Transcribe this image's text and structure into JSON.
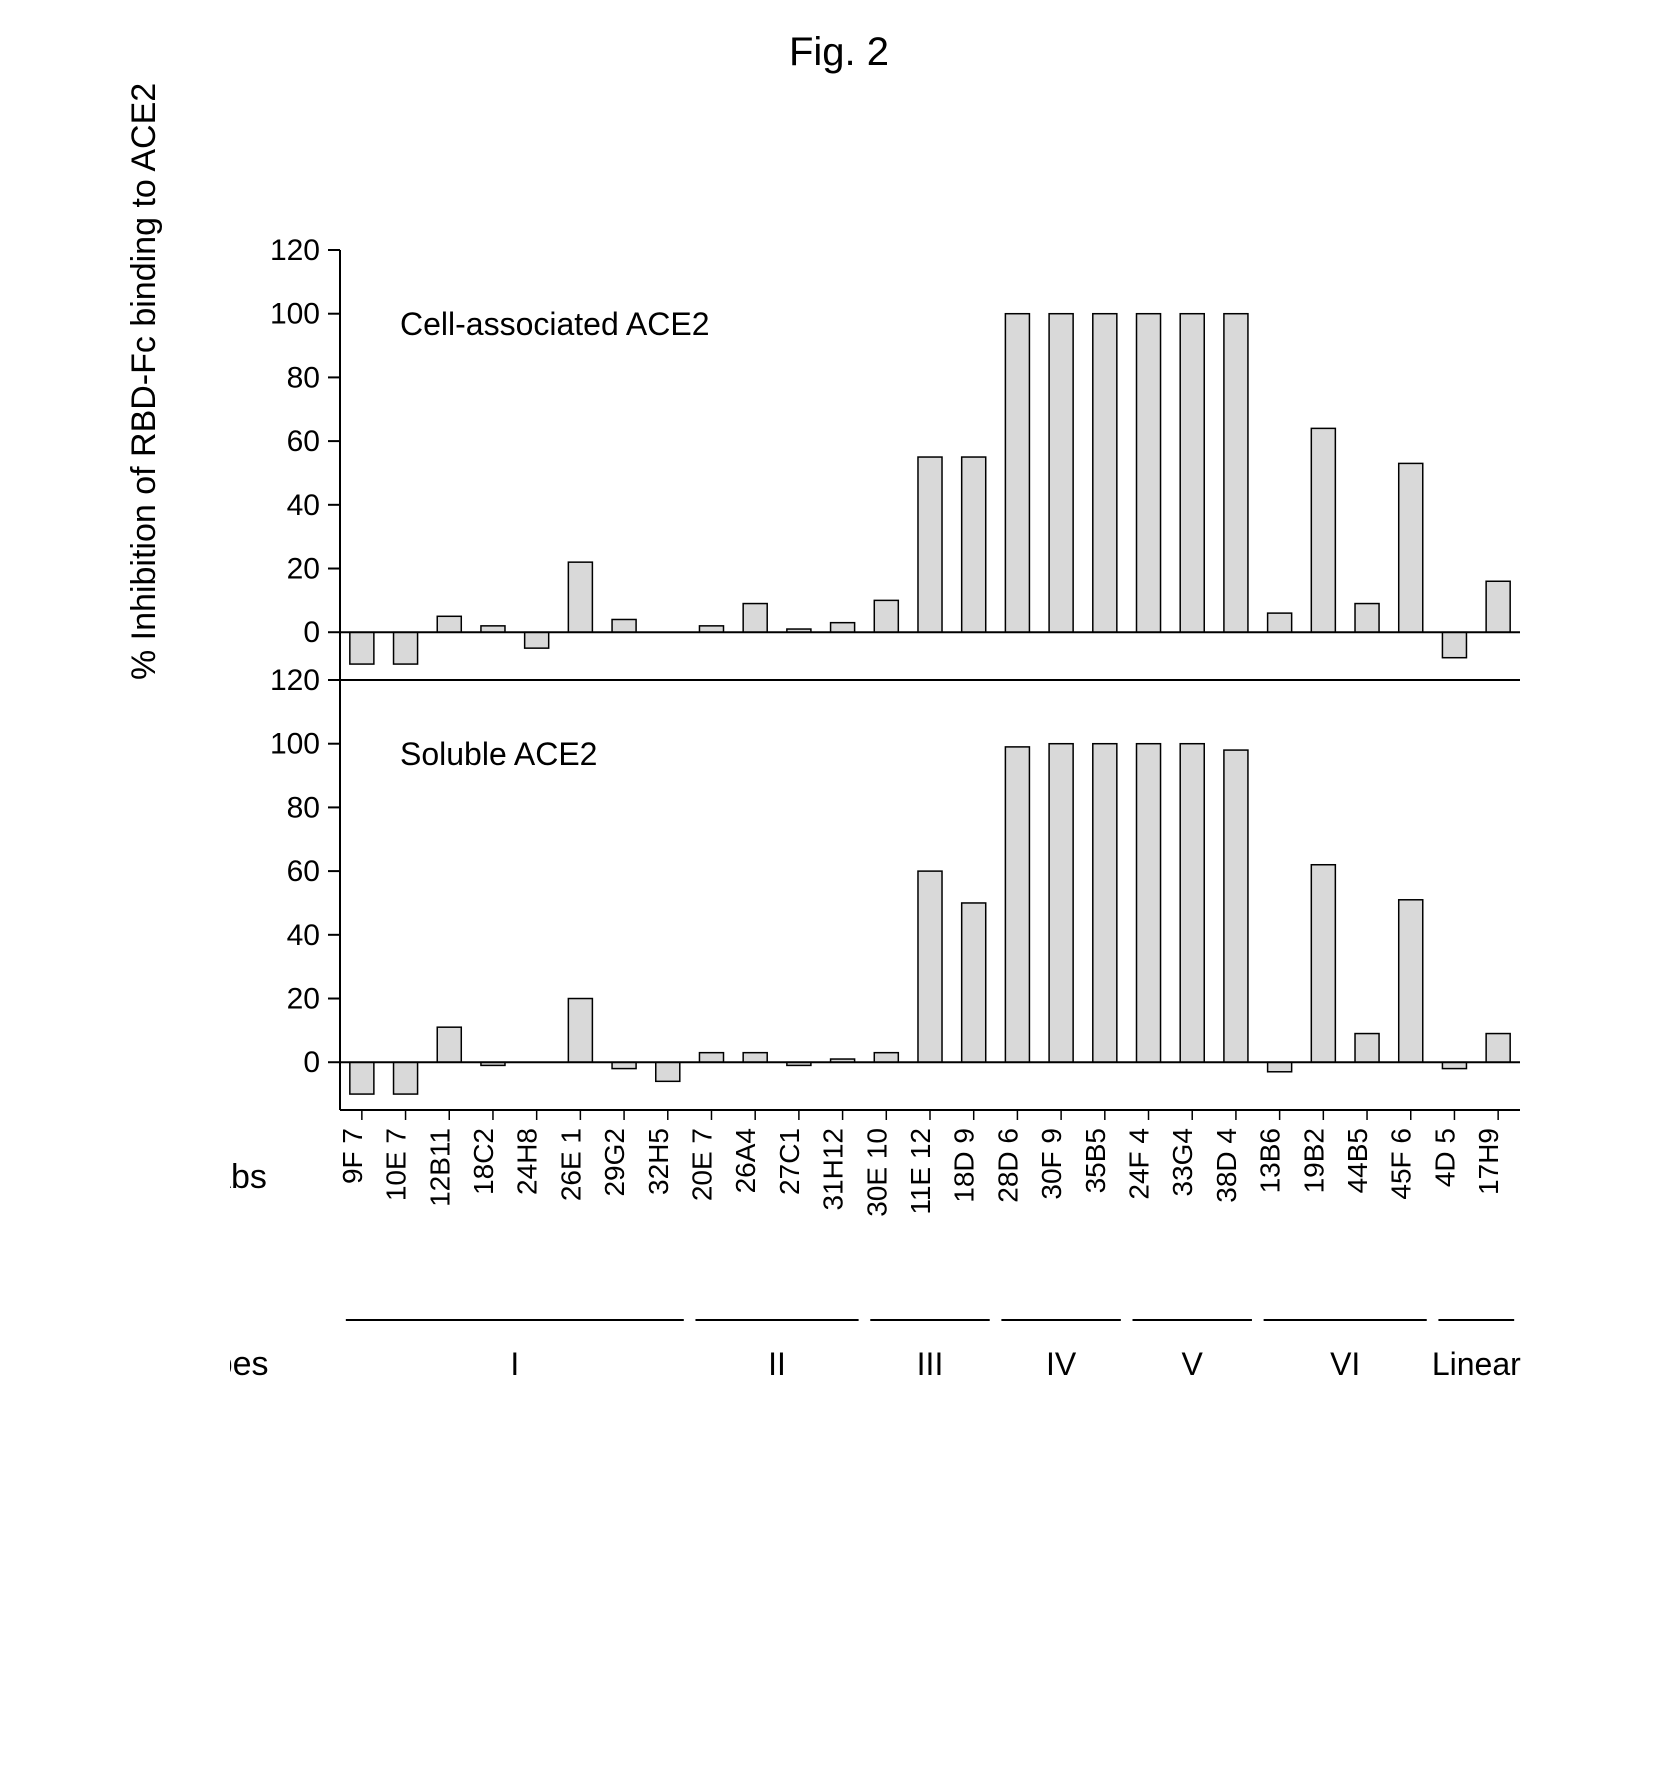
{
  "figure_title": "Fig. 2",
  "y_axis_label": "% Inhibition of RBD-Fc binding to ACE2",
  "x_axis_left_label": "mAbs",
  "epitope_row_label": "epitopes",
  "chart": {
    "type": "bar",
    "background_color": "#ffffff",
    "axis_color": "#000000",
    "bar_fill": "#d9d9d9",
    "bar_stroke": "#000000",
    "bar_width_ratio": 0.55,
    "panels": [
      {
        "label": "Cell-associated ACE2"
      },
      {
        "label": "Soluble ACE2"
      }
    ],
    "y": {
      "min": -15,
      "max": 120,
      "ticks": [
        0,
        20,
        40,
        60,
        80,
        100,
        120
      ],
      "tick_fontsize": 30
    },
    "categories": [
      "9F 7",
      "10E 7",
      "12B11",
      "18C2",
      "24H8",
      "26E 1",
      "29G2",
      "32H5",
      "20E 7",
      "26A4",
      "27C1",
      "31H12",
      "30E 10",
      "11E 12",
      "18D 9",
      "28D 6",
      "30F 9",
      "35B5",
      "24F 4",
      "33G4",
      "38D 4",
      "13B6",
      "19B2",
      "44B5",
      "45F 6",
      "4D 5",
      "17H9"
    ],
    "series": {
      "cell_associated": [
        -10,
        -10,
        5,
        2,
        -5,
        22,
        4,
        0,
        2,
        9,
        1,
        3,
        10,
        55,
        55,
        100,
        100,
        100,
        100,
        100,
        100,
        6,
        64,
        9,
        53,
        -8,
        16
      ],
      "soluble": [
        -10,
        -10,
        11,
        -1,
        0,
        20,
        -2,
        -6,
        3,
        3,
        -1,
        1,
        3,
        60,
        50,
        99,
        100,
        100,
        100,
        100,
        98,
        -3,
        62,
        9,
        51,
        -2,
        9
      ]
    },
    "epitope_groups": [
      {
        "label": "I",
        "from": 0,
        "to": 7
      },
      {
        "label": "II",
        "from": 8,
        "to": 11
      },
      {
        "label": "III",
        "from": 12,
        "to": 14
      },
      {
        "label": "IV",
        "from": 15,
        "to": 17
      },
      {
        "label": "V",
        "from": 18,
        "to": 20
      },
      {
        "label": "VI",
        "from": 21,
        "to": 24
      },
      {
        "label": "Linear",
        "from": 25,
        "to": 26
      }
    ]
  }
}
